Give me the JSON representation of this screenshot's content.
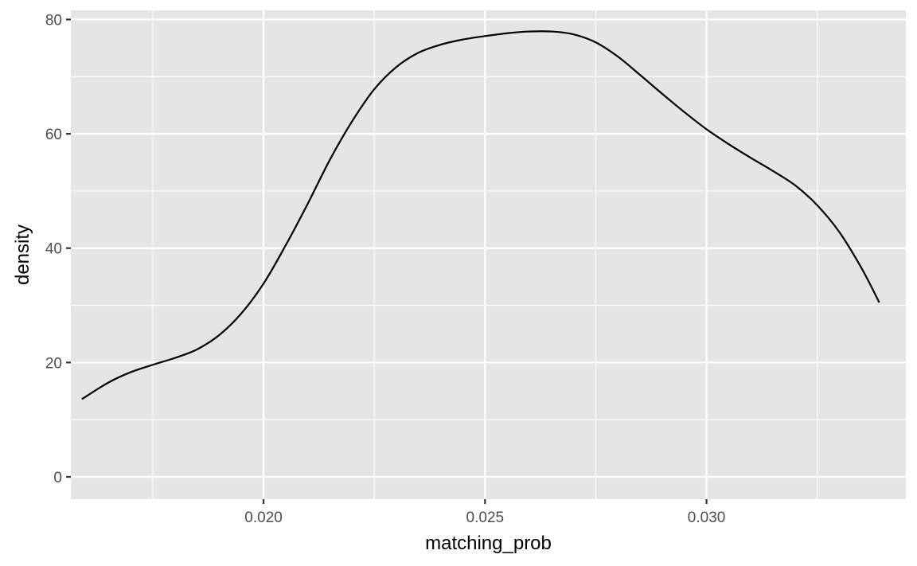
{
  "chart_data": {
    "type": "line",
    "geom": "density",
    "xlabel": "matching_prob",
    "ylabel": "density",
    "xlim": [
      0.01565,
      0.0345
    ],
    "ylim": [
      -3.9,
      81.6
    ],
    "x_ticks": [
      0.02,
      0.025,
      0.03
    ],
    "x_tick_labels": [
      "0.020",
      "0.025",
      "0.030"
    ],
    "x_minor_ticks": [
      0.0175,
      0.0225,
      0.0275,
      0.0325
    ],
    "y_ticks": [
      0,
      20,
      40,
      60,
      80
    ],
    "y_tick_labels": [
      "0",
      "20",
      "40",
      "60",
      "80"
    ],
    "y_minor_ticks": [
      10,
      30,
      50,
      70
    ],
    "grid": true,
    "legend": "none",
    "colors": {
      "panel_background": "#e5e5e5",
      "grid_line": "#ffffff",
      "line": "#000000",
      "tick_label": "#4d4d4d"
    },
    "series": [
      {
        "x": [
          0.0159,
          0.0165,
          0.017,
          0.0175,
          0.018,
          0.0185,
          0.019,
          0.0195,
          0.02,
          0.0205,
          0.021,
          0.0215,
          0.022,
          0.0225,
          0.023,
          0.0235,
          0.024,
          0.0245,
          0.025,
          0.0255,
          0.026,
          0.0265,
          0.027,
          0.0275,
          0.028,
          0.0285,
          0.029,
          0.0295,
          0.03,
          0.0305,
          0.031,
          0.0315,
          0.032,
          0.0325,
          0.033,
          0.0335,
          0.0339
        ],
        "y": [
          13.6,
          16.5,
          18.3,
          19.6,
          20.8,
          22.3,
          24.8,
          28.6,
          33.8,
          40.5,
          47.8,
          55.5,
          62.2,
          67.8,
          71.7,
          74.2,
          75.6,
          76.5,
          77.1,
          77.6,
          77.9,
          77.9,
          77.4,
          76.0,
          73.5,
          70.3,
          67.0,
          63.8,
          60.8,
          58.2,
          55.8,
          53.5,
          51.0,
          47.5,
          42.8,
          36.5,
          30.5
        ]
      }
    ]
  }
}
